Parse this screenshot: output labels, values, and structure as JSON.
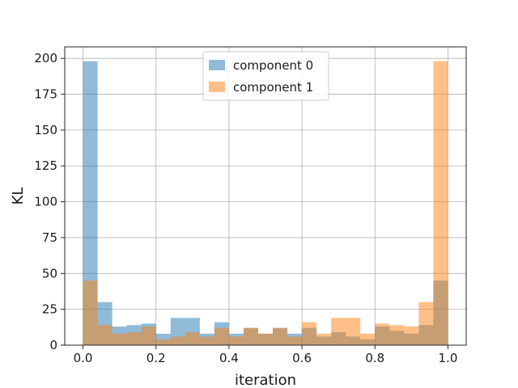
{
  "chart_data": {
    "type": "bar",
    "subtype": "overlapping-histogram",
    "xlabel": "iteration",
    "ylabel": "KL",
    "xlim": [
      -0.05,
      1.05
    ],
    "ylim": [
      0,
      208
    ],
    "xticks": [
      0.0,
      0.2,
      0.4,
      0.6,
      0.8,
      1.0
    ],
    "xtick_labels": [
      "0.0",
      "0.2",
      "0.4",
      "0.6",
      "0.8",
      "1.0"
    ],
    "yticks": [
      0,
      25,
      50,
      75,
      100,
      125,
      150,
      175,
      200
    ],
    "ytick_labels": [
      "0",
      "25",
      "50",
      "75",
      "100",
      "125",
      "150",
      "175",
      "200"
    ],
    "grid": true,
    "legend_position": "top-center",
    "bin_edges": [
      0.0,
      0.04,
      0.08,
      0.12,
      0.16,
      0.2,
      0.24,
      0.28,
      0.32,
      0.36,
      0.4,
      0.44,
      0.48,
      0.52,
      0.56,
      0.6,
      0.64,
      0.68,
      0.72,
      0.76,
      0.8,
      0.84,
      0.88,
      0.92,
      0.96,
      1.0
    ],
    "series": [
      {
        "name": "component 0",
        "color": "#1f77b4",
        "alpha": 0.5,
        "values": [
          198,
          30,
          13,
          14,
          15,
          8,
          19,
          19,
          8,
          16,
          8,
          12,
          8,
          12,
          8,
          12,
          6,
          9,
          6,
          4,
          13,
          10,
          8,
          14,
          45
        ]
      },
      {
        "name": "component 1",
        "color": "#ff7f0e",
        "alpha": 0.5,
        "values": [
          45,
          14,
          8,
          9,
          13,
          4,
          6,
          9,
          6,
          12,
          6,
          12,
          8,
          12,
          6,
          16,
          8,
          19,
          19,
          8,
          15,
          14,
          13,
          30,
          198
        ]
      }
    ]
  }
}
